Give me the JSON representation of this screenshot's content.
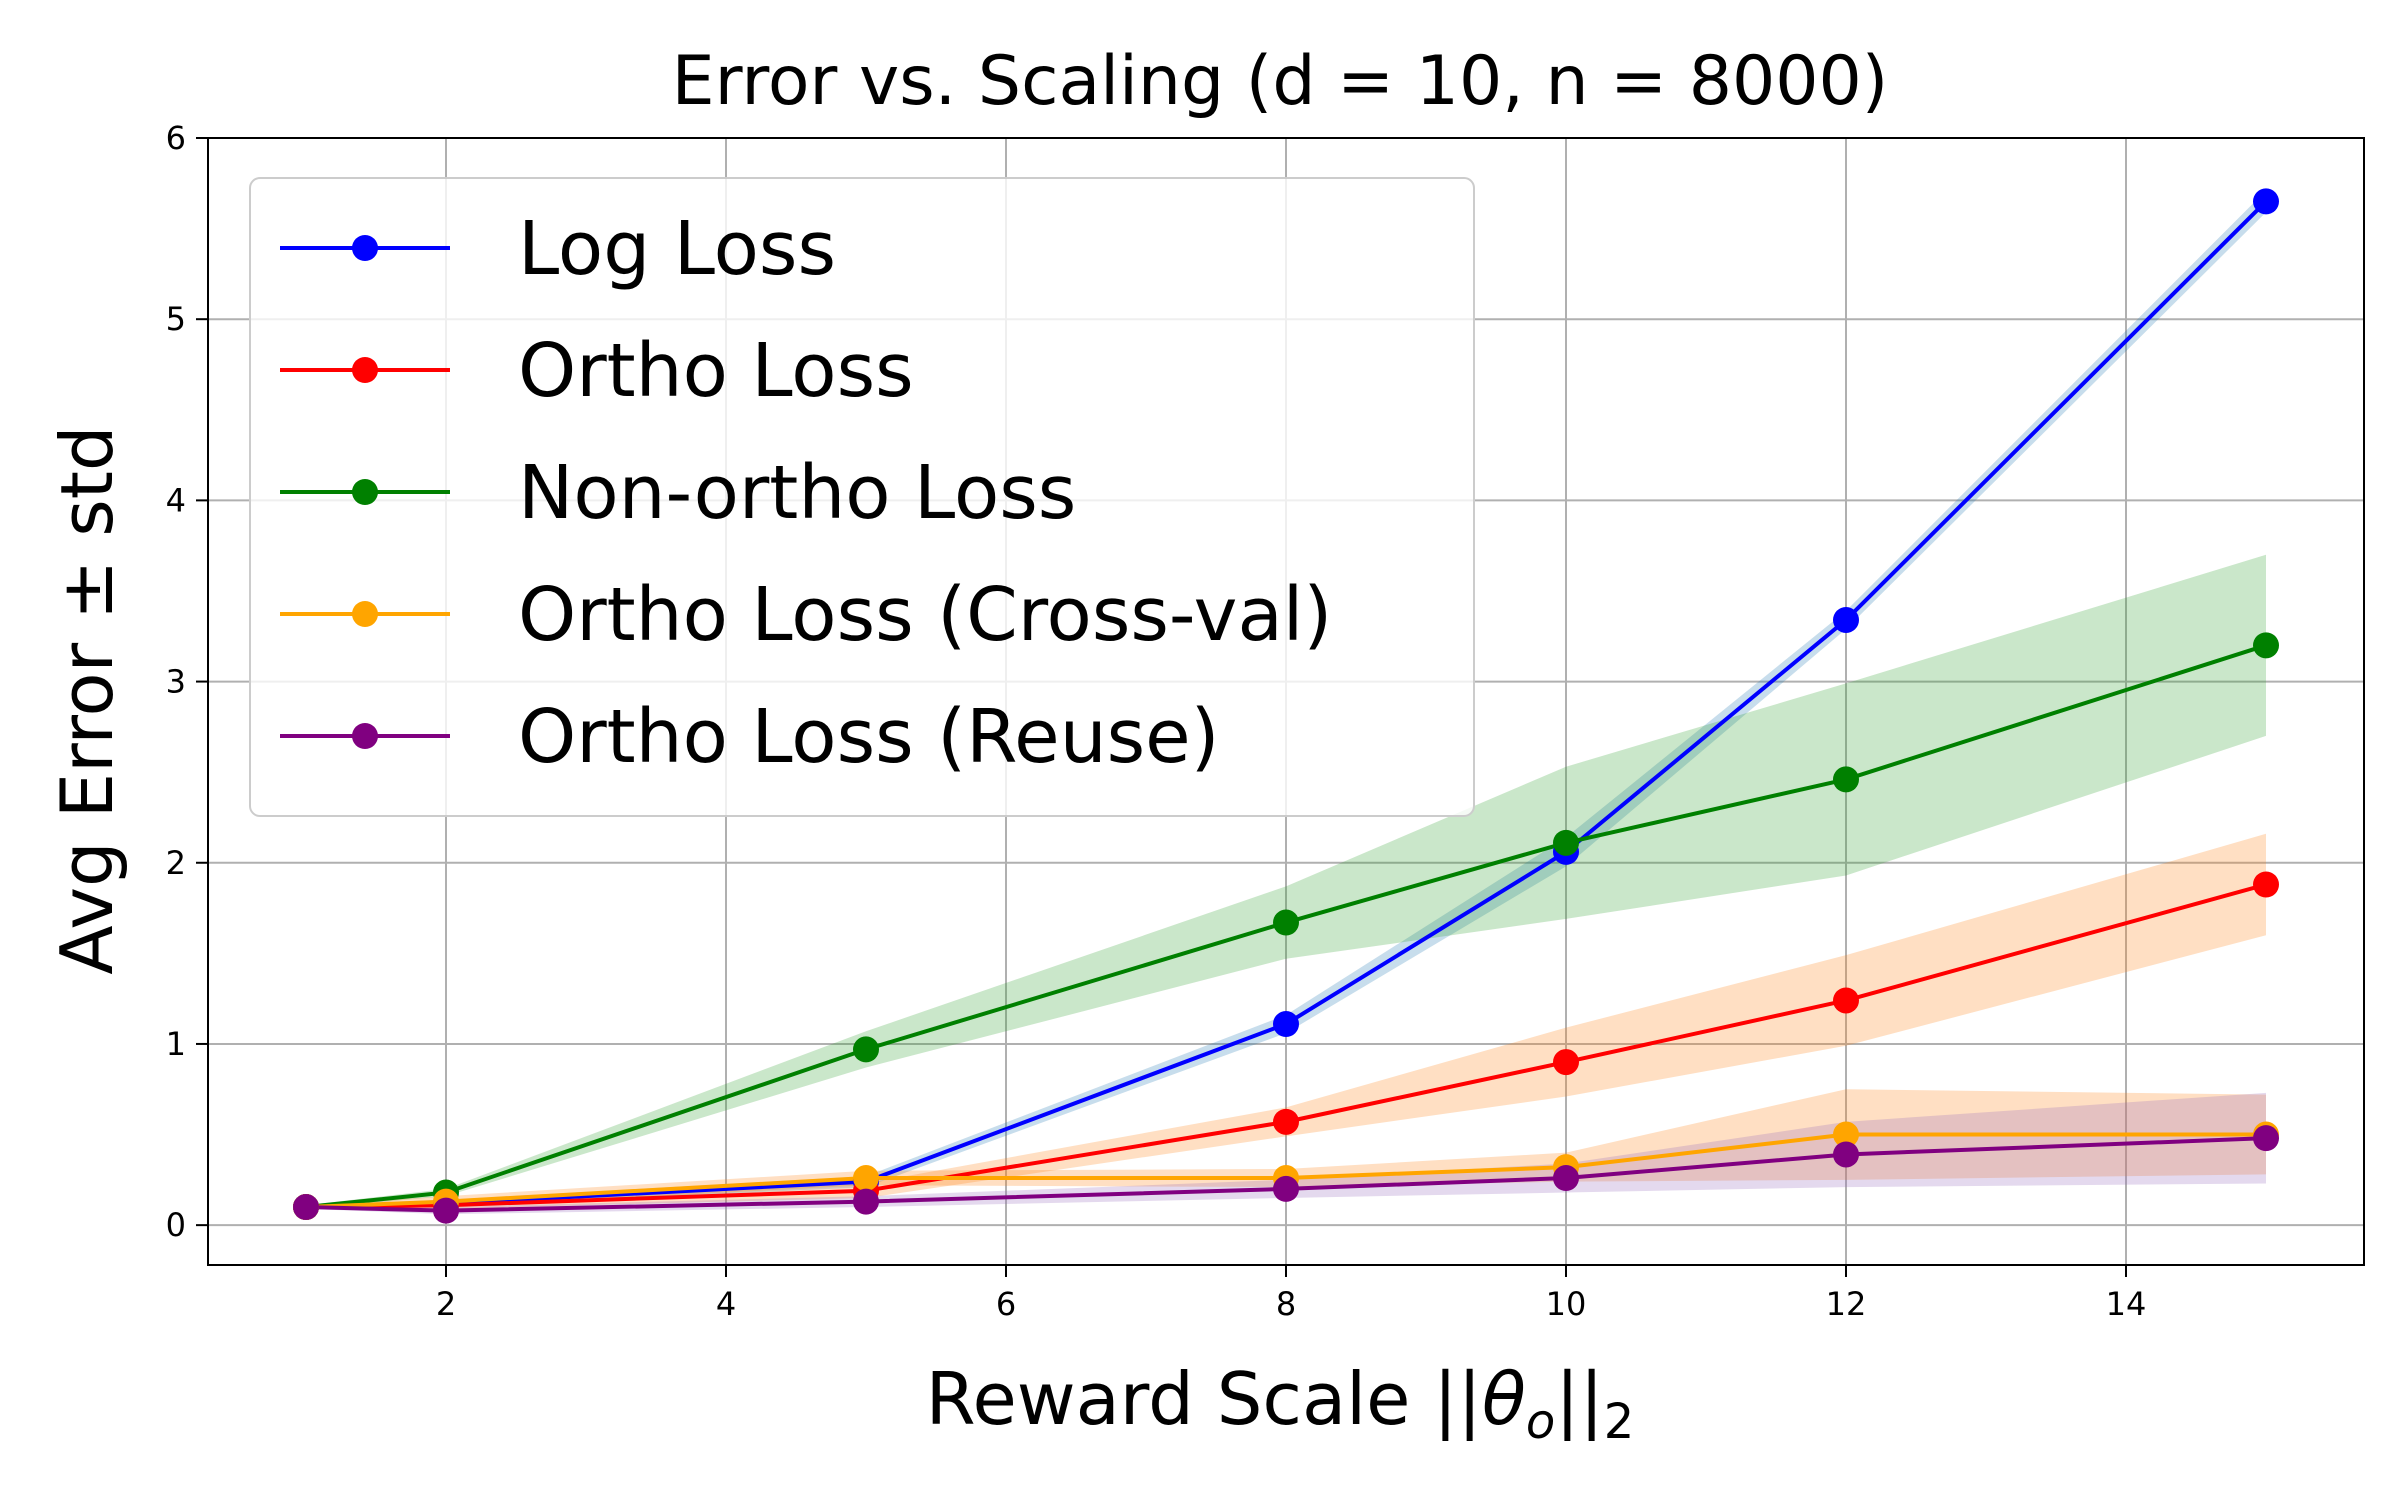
{
  "chart_data": {
    "type": "line",
    "title": "Error vs. Scaling (d = 10, n = 8000)",
    "xlabel": "Reward Scale ||θ₀||₂",
    "xlabel_parts": {
      "prefix": "Reward Scale ||",
      "theta": "θ",
      "sub_o": "o",
      "bars": "||",
      "sub_2": "2"
    },
    "ylabel": "Avg Error ± std",
    "xlim": [
      0.3,
      15.7
    ],
    "ylim": [
      -0.22,
      6.0
    ],
    "xticks": [
      2,
      4,
      6,
      8,
      10,
      12,
      14
    ],
    "yticks": [
      0,
      1,
      2,
      3,
      4,
      5,
      6
    ],
    "grid": true,
    "legend_position": "top-left",
    "x": [
      1,
      2,
      5,
      8,
      10,
      12,
      15
    ],
    "series": [
      {
        "name": "Log Loss",
        "color": "#0000ff",
        "band_color": "#1f77b4",
        "values": [
          0.1,
          0.12,
          0.24,
          1.11,
          2.06,
          3.34,
          5.65
        ],
        "std": [
          0.01,
          0.02,
          0.03,
          0.05,
          0.08,
          0.05,
          0.06
        ]
      },
      {
        "name": "Ortho Loss",
        "color": "#ff0000",
        "band_color": "#ff7f0e",
        "values": [
          0.1,
          0.11,
          0.19,
          0.57,
          0.9,
          1.24,
          1.88
        ],
        "std": [
          0.01,
          0.02,
          0.04,
          0.08,
          0.19,
          0.25,
          0.28
        ]
      },
      {
        "name": "Non-ortho Loss",
        "color": "#008000",
        "band_color": "#2ca02c",
        "values": [
          0.1,
          0.18,
          0.97,
          1.67,
          2.11,
          2.46,
          3.2
        ],
        "std": [
          0.01,
          0.02,
          0.1,
          0.2,
          0.42,
          0.53,
          0.5
        ]
      },
      {
        "name": "Ortho Loss (Cross-val)",
        "color": "#ffa500",
        "band_color": "#ff7f0e",
        "values": [
          0.1,
          0.13,
          0.26,
          0.26,
          0.32,
          0.5,
          0.5
        ],
        "std": [
          0.01,
          0.03,
          0.04,
          0.05,
          0.08,
          0.25,
          0.22
        ]
      },
      {
        "name": "Ortho Loss (Reuse)",
        "color": "#800080",
        "band_color": "#9467bd",
        "values": [
          0.1,
          0.08,
          0.13,
          0.2,
          0.26,
          0.39,
          0.48
        ],
        "std": [
          0.01,
          0.02,
          0.03,
          0.05,
          0.08,
          0.18,
          0.25
        ]
      }
    ]
  }
}
